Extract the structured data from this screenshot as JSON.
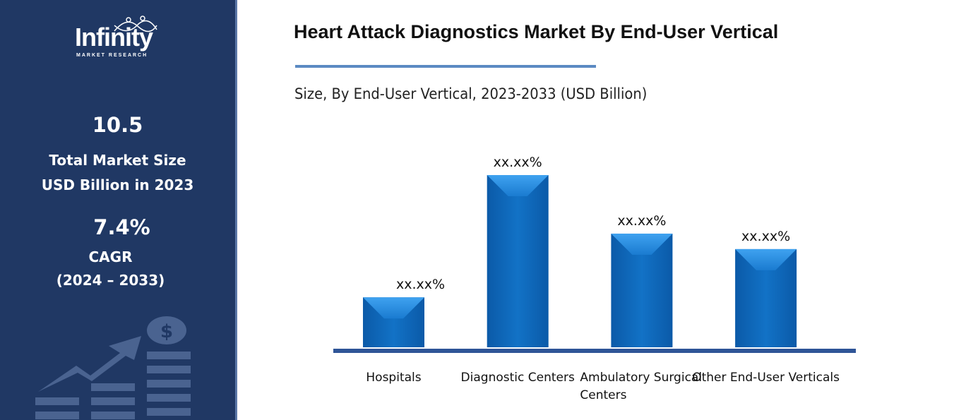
{
  "sidebar": {
    "logo_text": "Infinity",
    "logo_sub": "MARKET RESEARCH",
    "market_size": "10.5",
    "market_size_label_1": "Total Market Size",
    "market_size_label_2": "USD Billion in 2023",
    "cagr": "7.4%",
    "cagr_label": "CAGR",
    "cagr_period": "(2024 – 2033)"
  },
  "chart_data": {
    "type": "bar",
    "title": "Heart Attack Diagnostics Market By End-User Vertical",
    "subtitle": "Size, By End-User Vertical, 2023-2033 (USD Billion)",
    "categories": [
      "Hospitals",
      "Diagnostic Centers",
      "Ambulatory Surgical Centers",
      "Other End-User Verticals"
    ],
    "category_lines": [
      [
        "Hospitals"
      ],
      [
        "Diagnostic Centers"
      ],
      [
        "Ambulatory Surgical",
        "Centers"
      ],
      [
        "Other End-User Verticals"
      ]
    ],
    "values": [
      29,
      100,
      66,
      57
    ],
    "value_note": "relative bar heights, max = 100; no axis shown",
    "data_labels": [
      "xx.xx%",
      "xx.xx%",
      "xx.xx%",
      "xx.xx%"
    ],
    "ylim": [
      0,
      100
    ],
    "grid": false,
    "legend": "none",
    "bar_color": "#1170c4",
    "axis_color": "#2f5597"
  }
}
